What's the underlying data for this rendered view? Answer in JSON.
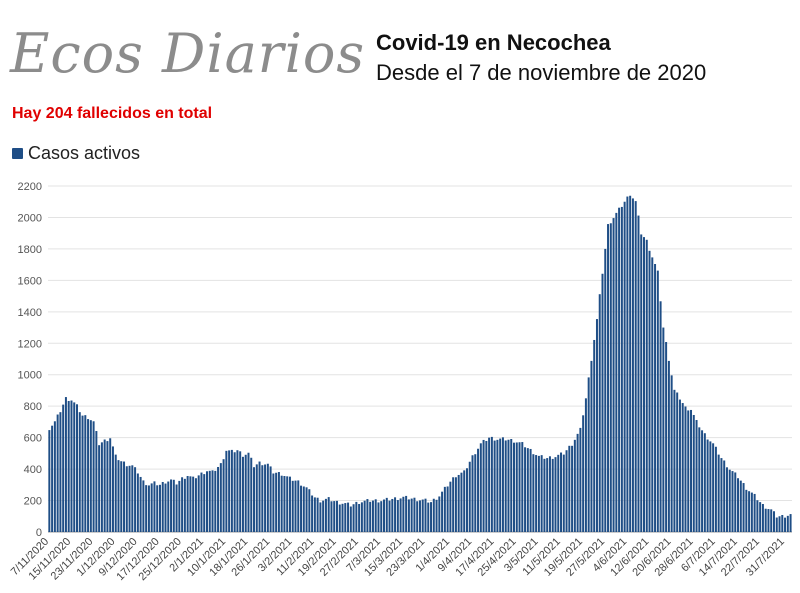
{
  "logo_text": "Ecos Diarios",
  "header": {
    "title": "Covid-19 en Necochea",
    "subtitle": "Desde el 7 de noviembre de 2020",
    "note": "Hay 204 fallecidos en total"
  },
  "colors": {
    "bar": "#1f4e86",
    "note": "#e00000",
    "logo": "#8c8c8c"
  },
  "chart_data": {
    "type": "bar",
    "series": [
      {
        "name": "Casos activos"
      }
    ],
    "ylim": [
      0,
      2200
    ],
    "yticks": [
      0,
      200,
      400,
      600,
      800,
      1000,
      1200,
      1400,
      1600,
      1800,
      2000,
      2200
    ],
    "grid": true,
    "legend": "top-left",
    "start_date": "2020-11-07",
    "end_date": "2021-08-02",
    "xtick_labels": [
      "7/11/2020",
      "15/11/2020",
      "23/11/2020",
      "1/12/2020",
      "9/12/2020",
      "17/12/2020",
      "25/12/2020",
      "2/1/2021",
      "10/1/2021",
      "18/1/2021",
      "26/1/2021",
      "3/2/2021",
      "11/2/2021",
      "19/2/2021",
      "27/2/2021",
      "7/3/2021",
      "15/3/2021",
      "23/3/2021",
      "1/4/2021",
      "9/4/2021",
      "17/4/2021",
      "25/4/2021",
      "3/5/2021",
      "11/5/2021",
      "19/5/2021",
      "27/5/2021",
      "4/6/2021",
      "12/6/2021",
      "20/6/2021",
      "28/6/2021",
      "6/7/2021",
      "14/7/2021",
      "22/7/2021",
      "31/7/2021"
    ],
    "anchors": [
      [
        "2020-11-07",
        660
      ],
      [
        "2020-11-09",
        700
      ],
      [
        "2020-11-11",
        770
      ],
      [
        "2020-11-13",
        850
      ],
      [
        "2020-11-15",
        840
      ],
      [
        "2020-11-17",
        800
      ],
      [
        "2020-11-19",
        740
      ],
      [
        "2020-11-21",
        730
      ],
      [
        "2020-11-23",
        700
      ],
      [
        "2020-11-25",
        560
      ],
      [
        "2020-11-27",
        580
      ],
      [
        "2020-11-29",
        600
      ],
      [
        "2020-12-01",
        480
      ],
      [
        "2020-12-03",
        450
      ],
      [
        "2020-12-05",
        430
      ],
      [
        "2020-12-07",
        420
      ],
      [
        "2020-12-09",
        380
      ],
      [
        "2020-12-11",
        320
      ],
      [
        "2020-12-13",
        300
      ],
      [
        "2020-12-15",
        310
      ],
      [
        "2020-12-17",
        300
      ],
      [
        "2020-12-19",
        320
      ],
      [
        "2020-12-21",
        330
      ],
      [
        "2020-12-23",
        310
      ],
      [
        "2020-12-25",
        340
      ],
      [
        "2020-12-27",
        360
      ],
      [
        "2020-12-29",
        340
      ],
      [
        "2021-01-01",
        370
      ],
      [
        "2021-01-03",
        390
      ],
      [
        "2021-01-05",
        380
      ],
      [
        "2021-01-08",
        430
      ],
      [
        "2021-01-10",
        520
      ],
      [
        "2021-01-12",
        510
      ],
      [
        "2021-01-14",
        520
      ],
      [
        "2021-01-16",
        490
      ],
      [
        "2021-01-18",
        500
      ],
      [
        "2021-01-20",
        420
      ],
      [
        "2021-01-22",
        440
      ],
      [
        "2021-01-25",
        430
      ],
      [
        "2021-01-27",
        380
      ],
      [
        "2021-01-30",
        370
      ],
      [
        "2021-02-02",
        340
      ],
      [
        "2021-02-05",
        320
      ],
      [
        "2021-02-08",
        280
      ],
      [
        "2021-02-11",
        220
      ],
      [
        "2021-02-13",
        200
      ],
      [
        "2021-02-16",
        210
      ],
      [
        "2021-02-19",
        190
      ],
      [
        "2021-02-22",
        180
      ],
      [
        "2021-02-24",
        170
      ],
      [
        "2021-02-27",
        190
      ],
      [
        "2021-03-03",
        200
      ],
      [
        "2021-03-07",
        200
      ],
      [
        "2021-03-11",
        210
      ],
      [
        "2021-03-15",
        220
      ],
      [
        "2021-03-19",
        210
      ],
      [
        "2021-03-23",
        200
      ],
      [
        "2021-03-25",
        190
      ],
      [
        "2021-03-28",
        230
      ],
      [
        "2021-04-01",
        320
      ],
      [
        "2021-04-03",
        360
      ],
      [
        "2021-04-06",
        380
      ],
      [
        "2021-04-09",
        480
      ],
      [
        "2021-04-12",
        560
      ],
      [
        "2021-04-15",
        600
      ],
      [
        "2021-04-18",
        590
      ],
      [
        "2021-04-21",
        590
      ],
      [
        "2021-04-24",
        580
      ],
      [
        "2021-04-27",
        560
      ],
      [
        "2021-04-30",
        520
      ],
      [
        "2021-05-03",
        480
      ],
      [
        "2021-05-06",
        470
      ],
      [
        "2021-05-09",
        480
      ],
      [
        "2021-05-12",
        500
      ],
      [
        "2021-05-15",
        560
      ],
      [
        "2021-05-18",
        650
      ],
      [
        "2021-05-20",
        850
      ],
      [
        "2021-05-22",
        1100
      ],
      [
        "2021-05-24",
        1350
      ],
      [
        "2021-05-26",
        1650
      ],
      [
        "2021-05-28",
        1950
      ],
      [
        "2021-05-30",
        2000
      ],
      [
        "2021-06-01",
        2050
      ],
      [
        "2021-06-03",
        2100
      ],
      [
        "2021-06-05",
        2150
      ],
      [
        "2021-06-07",
        2100
      ],
      [
        "2021-06-09",
        1900
      ],
      [
        "2021-06-11",
        1850
      ],
      [
        "2021-06-13",
        1750
      ],
      [
        "2021-06-15",
        1650
      ],
      [
        "2021-06-17",
        1300
      ],
      [
        "2021-06-19",
        1100
      ],
      [
        "2021-06-21",
        900
      ],
      [
        "2021-06-23",
        850
      ],
      [
        "2021-06-25",
        790
      ],
      [
        "2021-06-27",
        780
      ],
      [
        "2021-06-29",
        700
      ],
      [
        "2021-07-02",
        620
      ],
      [
        "2021-07-05",
        560
      ],
      [
        "2021-07-08",
        470
      ],
      [
        "2021-07-11",
        400
      ],
      [
        "2021-07-14",
        350
      ],
      [
        "2021-07-17",
        280
      ],
      [
        "2021-07-20",
        230
      ],
      [
        "2021-07-23",
        170
      ],
      [
        "2021-07-26",
        140
      ],
      [
        "2021-07-28",
        100
      ],
      [
        "2021-07-30",
        100
      ],
      [
        "2021-08-02",
        110
      ]
    ]
  }
}
